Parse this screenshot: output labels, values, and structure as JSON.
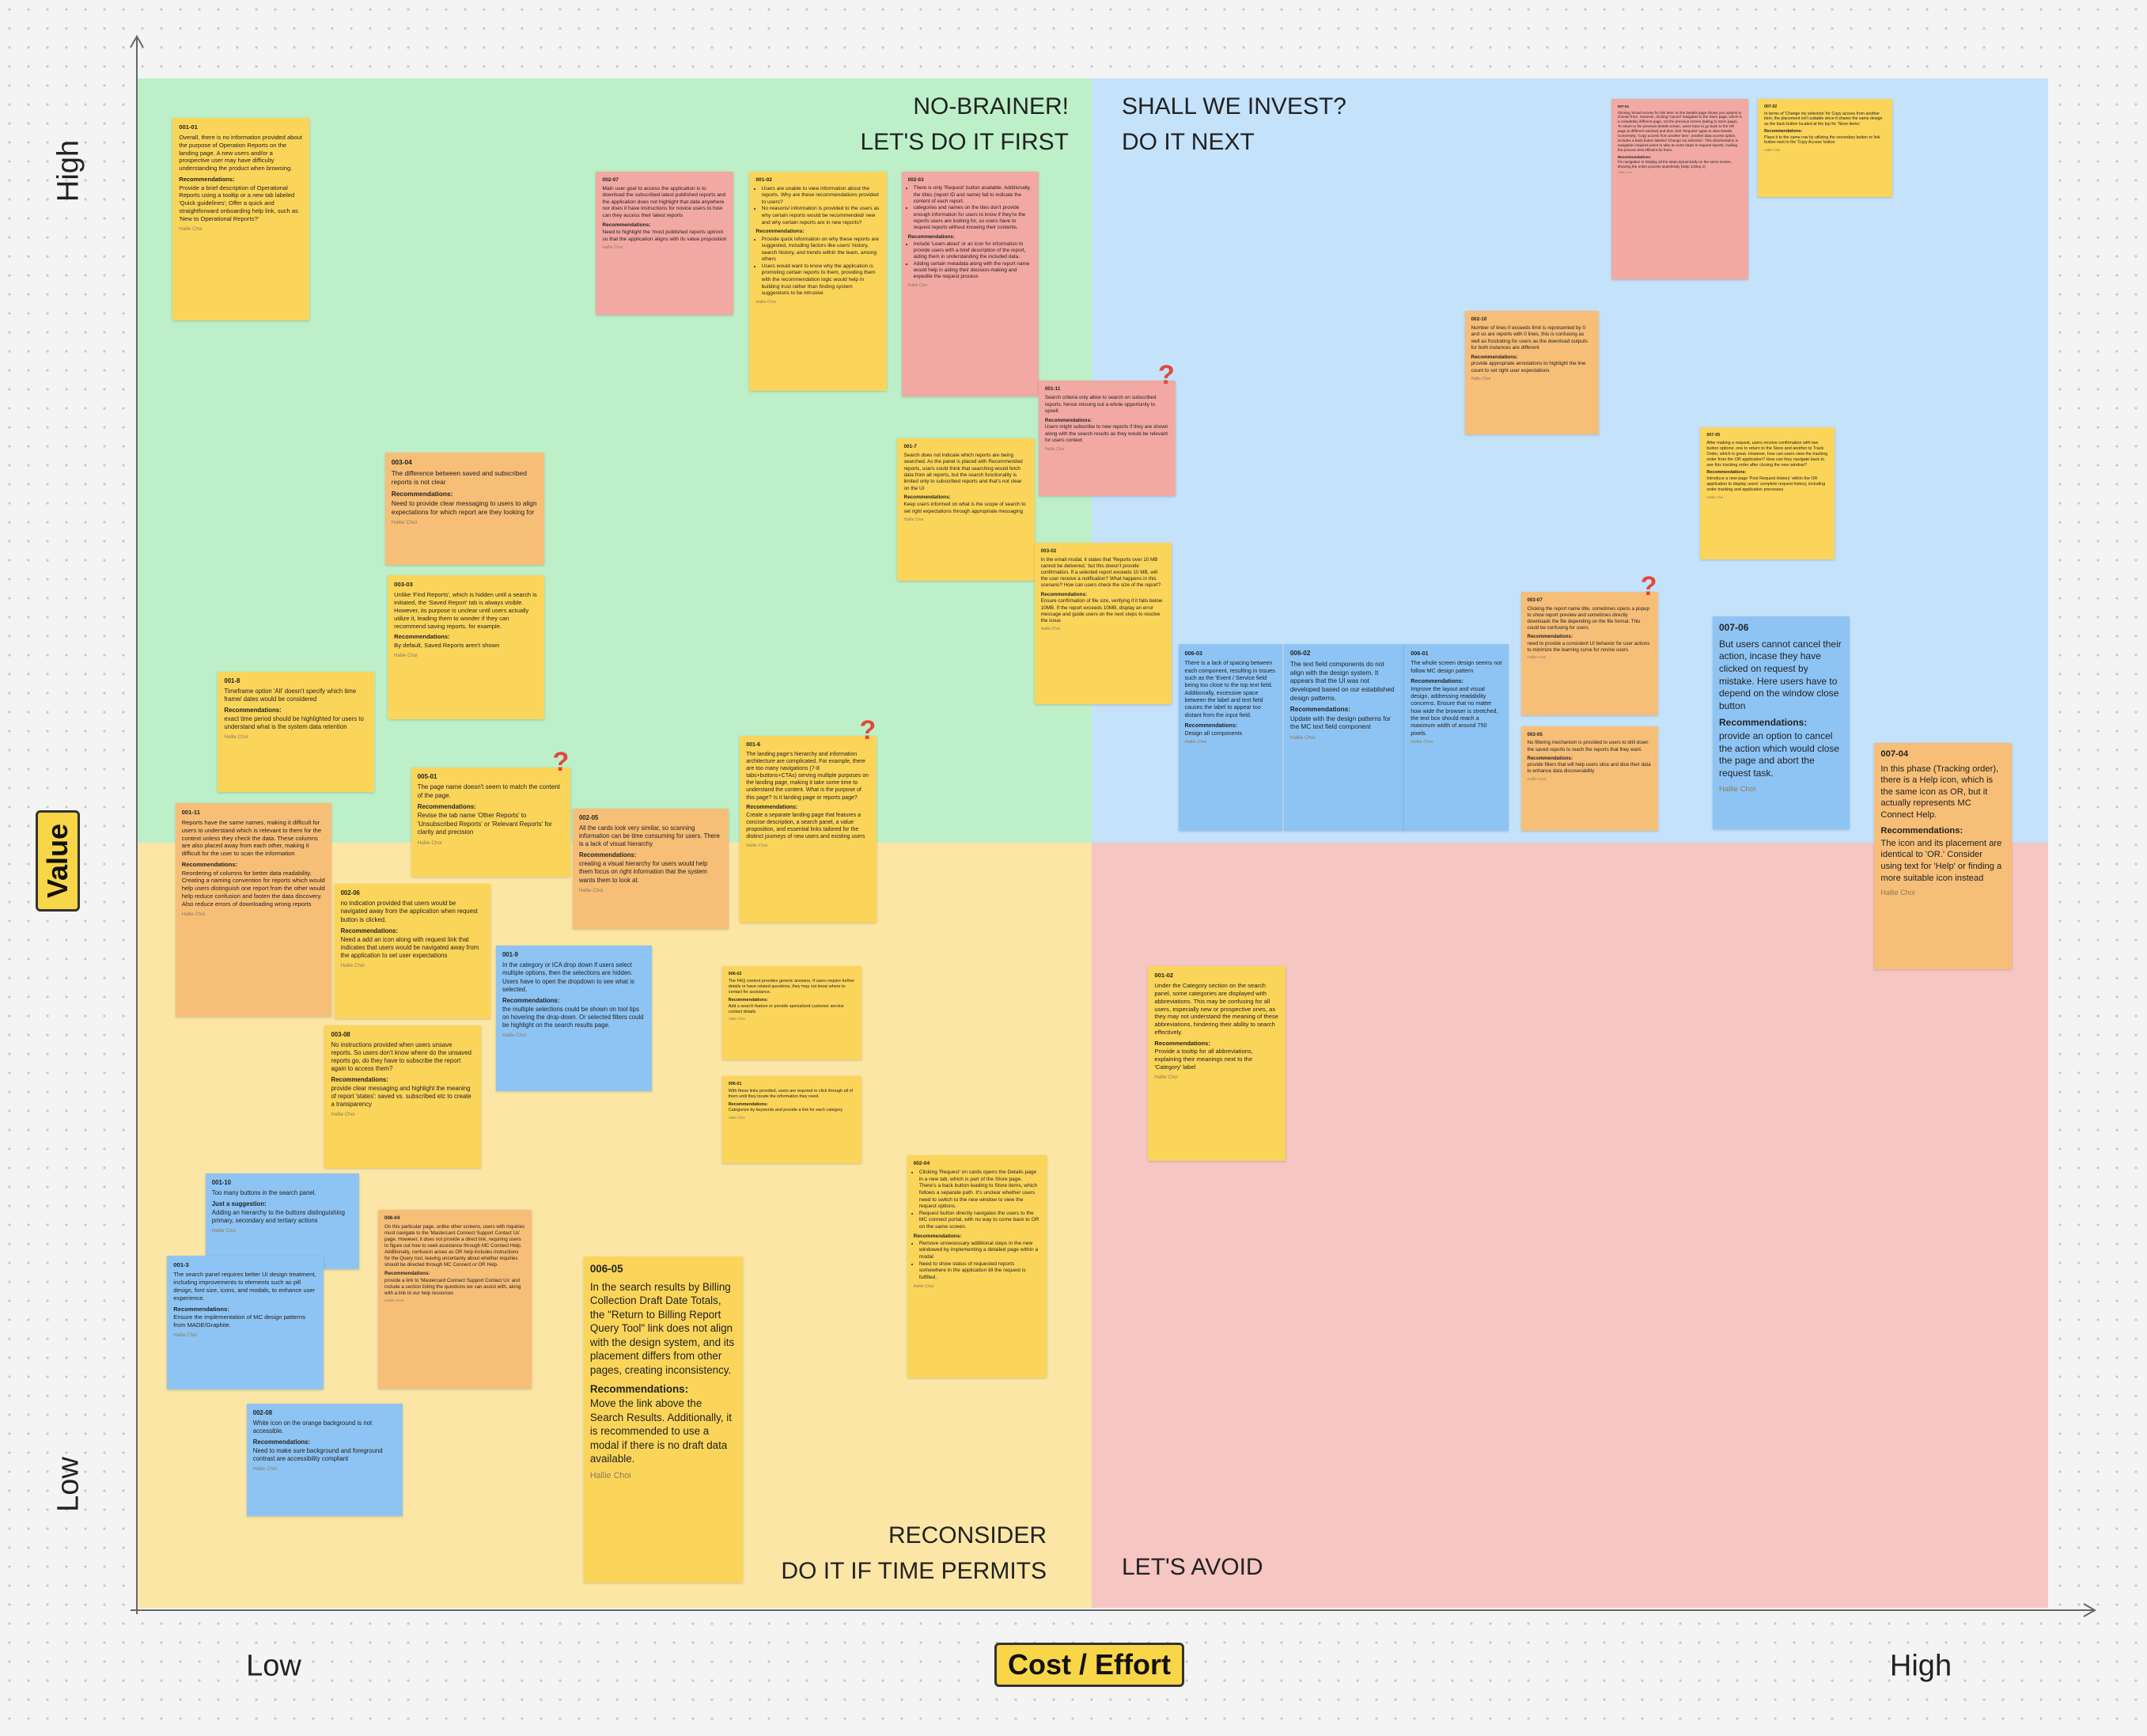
{
  "axes": {
    "y_high": "High",
    "y_label": "Value",
    "y_low": "Low",
    "x_low": "Low",
    "x_label": "Cost / Effort",
    "x_high": "High"
  },
  "quadrants": [
    {
      "lines": [
        "NO-BRAINER!",
        "LET'S DO IT FIRST"
      ]
    },
    {
      "lines": [
        "SHALL WE INVEST?",
        "DO IT NEXT"
      ]
    },
    {
      "lines": [
        "RECONSIDER",
        "DO IT IF TIME PERMITS"
      ]
    },
    {
      "lines": [
        "LET'S AVOID"
      ]
    }
  ],
  "notes": [
    {
      "id": "001-01",
      "body": "Overall, there is no information provided about the purpose of Operation Reports on the landing page. A new users and/or a prospective user may have difficulty understanding the product when browsing.",
      "rec_label": "Recommendations:",
      "rec": "Provide a brief description of Operational Reports using a tooltip or a new tab labeled 'Quick guidelines'; Offer a quick and straightforward onboarding help link, such as 'New to Operational Reports?'",
      "author": "Hallie Choi"
    },
    {
      "id": "002-07",
      "body": "Main user goal to access the application is to download the subscribed latest published reports and the application does not highlight that data anywhere nor does it have instructions for novice users to how can they access their latest reports",
      "rec_label": "Recommendations:",
      "rec": "Need to highlight the 'most published reports uptront so that the application aligns with its value proposition",
      "author": "Hallie Choi"
    },
    {
      "id": "001-02",
      "body_list": [
        "Users are unable to view information about the reports. Why are these recommendations provided to users?",
        "No reasons/ information is provided to the users as why certain reports would be recommended/ new and why certain reports are in new reports?"
      ],
      "rec_label": "Recommendations:",
      "rec_list": [
        "Provide quick information on why these reports are suggested, including factors like users' history, search history, and trends within the team, among others",
        "Users would want to know why the application is promoting certain reports to them, providing them with the recommendation logic would help in building trust rather than finding system suggestions to be intrusive"
      ],
      "author": "Hallie Choi"
    },
    {
      "id": "002-03",
      "body_list": [
        "There is only 'Request' button available. Additionally, the titles (report ID and name) fail to indicate the content of each report.",
        "categories and names on the tiles don't provide enough information for users to know if they're the reports users are looking for, so users have to request reports without knowing their contents."
      ],
      "rec_label": "Recommendations:",
      "rec_list": [
        "Include 'Learn about' or an icon for information to provide users with a brief description of the report, aiding them in understanding the included data.",
        "Adding certain metadata along with the report name would help in aiding their decision-making and expedite the request process"
      ],
      "author": "Hallie Choi"
    },
    {
      "id": "007-01",
      "body": "Clicking 'Email Access for this item' on the Details page shows you options to choose from. However, clicking 'Cancel' navigates to the Store page, which is a completely different page, not the previous screen (taking to Store page). To return to the previous details screen, users have to go back to the OR page (a different window) and then click 'Request' again to view Details. Conversely, 'Copy access from another item', another data access option, includes a back button labeled 'Change my selection'. This disorientation in navigation requires users to take an extra steps to request reports, making the process less efficient for them.",
      "rec_label": "Recommendations:",
      "rec": "Fix navigation or Display all the steps dynamically on the same screen, showing the entire process seamlessly (Step 1/Step 2)",
      "author": "Hallie Choi"
    },
    {
      "id": "007-02",
      "body": "In terms of 'Change my selection' for Copy access from another item, the placement isn't suitable since it shares the same design as the back button located at the top for 'Store items.'",
      "rec_label": "Recommendations:",
      "rec": "Place it to the same row by utilizing the secondary button or link button next to the 'Copy Access' button",
      "author": "Hallie Choi"
    },
    {
      "id": "002-10",
      "body": "Number of lines if exceeds limit is represented by 0 and so are reports with 0 lines, this is confusing as well as frustrating for users as the download outputs for both instances are different",
      "rec_label": "Recommendations:",
      "rec": "provide appropriate annotations to highlight the line count to set right user expectations",
      "author": "Hallie Choi"
    },
    {
      "id": "001-11",
      "flag": "?",
      "body": "Search criteria only allow to search on subscribed reports, hence missing out a whole opportunity to upsell.",
      "rec_label": "Recommendations:",
      "rec": "Users might subscribe to new reports if they are shown along with the search results as they would be relevant for users context",
      "author": "Hallie Choi"
    },
    {
      "id": "001-7",
      "body": "Search does not indicate which reports are being searched. As the panel is placed with Recommended reports, users could think that searching would fetch data from all reports, but the search functionality is limited only to subscribed reports and that's not clear on the UI",
      "rec_label": "Recommendations:",
      "rec": "Keep users informed on what is the scope of search to set right expectations through appropriate messaging",
      "author": "Hallie Choi"
    },
    {
      "id": "003-04",
      "body": "The difference between saved and subscribed reports is not clear",
      "rec_label": "Recommendations:",
      "rec": "Need to provide clear messaging to users to align expectations for which report are they looking for",
      "author": "Hallie Choi"
    },
    {
      "id": "003-03",
      "body": "Unlike 'Find Reports', which is hidden until a search is initiated, the 'Saved Report' tab is always visible. However, its purpose is unclear until users actually utilize it, leading them to wonder if they can recommend saving reports, for example.",
      "rec_label": "Recommendations:",
      "rec": "By default, Saved Reports aren't shown",
      "author": "Hallie Choi"
    },
    {
      "id": "007-05",
      "body": "After making a request, users receive confirmation with two button options: one to return to the Store and another to Track Order, which is great. However, how can users view the tracking order from the OR application? How can they navigate back to see this tracking order after closing the new window?",
      "rec_label": "Recommendations:",
      "rec": "Introduce a new page 'Post Request History' within the OR application to display users' complete request history, including order tracking and application processes",
      "author": "Hallie Choi"
    },
    {
      "id": "003-02",
      "body": "In the email modal, it states that 'Reports over 10 MB cannot be delivered,' but this doesn't provide confirmation. If a selected report exceeds 10 MB, will the user receive a notification? What happens in this scenario? How can users check the size of the report?",
      "rec_label": "Recommendations:",
      "rec": "Ensure confirmation of file size, verifying if it falls below 10MB. If the report exceeds 10MB, display an error message and guide users on the next steps to resolve the issue",
      "author": "Hallie Choi"
    },
    {
      "id": "001-8",
      "body": "Timeframe option 'All' doesn't specify which time frame/ dates would be considered",
      "rec_label": "Recommendations:",
      "rec": "exact time period should be highlighted for users to understand what is the system data retention",
      "author": "Hallie Choi"
    },
    {
      "id": "003-07",
      "flag": "?",
      "body": "Clicking the report name title, sometimes opens a popup to show report preview and sometimes directly downloads the file depending on the file format. This could be confusing for users",
      "rec_label": "Recommendations:",
      "rec": "need to provide a consistent UI behavior for user actions to minimize the learning curve for novice users",
      "author": "Hallie Choi"
    },
    {
      "id": "006-03",
      "body": "There is a lack of spacing between each component, resulting in issues such as the 'Event / Service field being too close to the top text field. Additionally, excessive space between the label and text field causes the label to appear too distant from the input field.",
      "rec_label": "Recommendations:",
      "rec": "Design all components",
      "author": "Hallie Choi"
    },
    {
      "id": "006-02",
      "body": "The text field components do not align with the design system. It appears that the UI was not developed based on our established design patterns.",
      "rec_label": "Recommendations:",
      "rec": "Update with the design patterns for the MC text field component",
      "author": "Hallie Choi"
    },
    {
      "id": "006-01",
      "body": "The whole screen design seems not follow MC design pattern",
      "rec_label": "Recommendations:",
      "rec": "Improve the layout and visual design, addressing readability concerns. Ensure that no matter how wide the browser is stretched, the text box should reach a maximum width of around 750 pixels.",
      "author": "Hallie Choi"
    },
    {
      "id": "003-05",
      "body": "No filtering mechanism is provided to users to drill down the saved reports to reach the reports that they want.",
      "rec_label": "Recommendations:",
      "rec": "provide filters that will help users slice and dice their data to enhance data discoverability",
      "author": "Hallie Choi"
    },
    {
      "id": "007-06",
      "body": "But users cannot cancel their action, incase they have clicked on request by mistake. Here users have to depend on the window close button",
      "rec_label": "Recommendations:",
      "rec": "provide an option to cancel the action which would close the page and abort the request task.",
      "author": "Hallie Choi"
    },
    {
      "id": "007-04",
      "body": "In this phase (Tracking order), there is a Help icon, which is the same icon as OR, but it actually represents MC Connect Help.",
      "rec_label": "Recommendations:",
      "rec": "The icon and its placement are identical to 'OR.' Consider using text for 'Help' or finding a more suitable icon instead",
      "author": "Hallie Choi"
    },
    {
      "id": "005-01",
      "flag": "?",
      "body": "The page name doesn't seem to match the content of the page.",
      "rec_label": "Recommendations:",
      "rec": "Revise the tab name 'Other Reports' to 'Unsubscribed Reports' or 'Relevant Reports' for clarity and precision",
      "author": "Hallie Choi"
    },
    {
      "id": "001-6",
      "flag": "?",
      "body": "The landing page's hierarchy and information architecture are complicated. For example, there are too many navigations (7-8 tabs+buttons+CTAs) serving multiple purposes on the landing page, making it take some time to understand the content. What is the purpose of this page? Is it landing page or reports page?",
      "rec_label": "Recommendations:",
      "rec": "Create a separate landing page that features a concise description, a search panel, a value proposition, and essential links tailored for the distinct journeys of new users and existing users",
      "author": "Hallie Choi"
    },
    {
      "id": "002-05",
      "body": "All the cards look very similar, so scanning information can be time consuming for users. There is a lack of visual hierarchy",
      "rec_label": "Recommendations:",
      "rec": "creating a visual hierarchy for users would help them focus on right information that the system wants them to look at.",
      "author": "Hallie Choi"
    },
    {
      "id": "001-11",
      "body": "Reports have the same names, making it difficult for users to understand which is relevant to them for the context unless they check the data. These columns are also placed away from each other, making it difficult for the user to scan the information",
      "rec_label": "Recommendations:",
      "rec": "Reordering of columns for better data readability. Creating a naming convention for reports which would help users distinguish one report from the other would help reduce confusion and fasten the data discovery. Also reduce errors of downloading wrong reports",
      "author": "Hallie Choi"
    },
    {
      "id": "002-06",
      "body": "no indication provided that users would be navigated away from the application when request button is clicked.",
      "rec_label": "Recommendations:",
      "rec": "Need a add an icon along with request link that indicates that users would be navigated away from the application to set user expectations",
      "author": "Hallie Choi"
    },
    {
      "id": "001-9",
      "body": "In the category or ICA drop down if users select multiple options, then the selections are hidden. Users have to open the dropdown to see what is selected.",
      "rec_label": "Recommendations:",
      "rec": "the multiple selections could be shown on tool tips on hovering the drop-down. Or selected filters could be highlight on the search results page.",
      "author": "Hallie Choi"
    },
    {
      "id": "006-02",
      "body": "The FAQ content provides generic answers. If users require further details or have related questions, they may not know where to contact for assistance.",
      "rec_label": "Recommendations:",
      "rec": "Add a search feature or provide specialized customer service contact details",
      "author": "Hallie Choi"
    },
    {
      "id": "006-01",
      "body": "With these links provided, users are required to click through all of them until they locate the information they need.",
      "rec_label": "Recommendations:",
      "rec": "Categorize by keywords and provide a link for each category",
      "author": "Hallie Choi"
    },
    {
      "id": "001-02",
      "body": "Under the Category section on the search panel, some categories are displayed with abbreviations. This may be confusing for all users, especially new or prospective ones, as they may not understand the meaning of these abbreviations, hindering their ability to search effectively.",
      "rec_label": "Recommendations:",
      "rec": "Provide a tooltip for all abbreviations, explaining their meanings next to the 'Category' label",
      "author": "Hallie Choi"
    },
    {
      "id": "003-08",
      "body": "No instructions provided when users unsave reports. So users don't know where do the unsaved reports go, do they have to subscribe the report again to access them?",
      "rec_label": "Recommendations:",
      "rec": "provide clear messaging and highlight the meaning of report 'states': saved vs. subscribed etc to create a transparency",
      "author": "Hallie Choi"
    },
    {
      "id": "001-10",
      "body": "Too many buttons in the search panel.",
      "rec_label": "Just a suggestion:",
      "rec": "Adding an hierarchy to the buttons distinguishing primary, secondary and tertiary actions",
      "author": "Hallie Choi"
    },
    {
      "id": "001-3",
      "body": "The search panel requires better UI design treatment, including improvements to elements such as pill design, font size, icons, and modals, to enhance user experience.",
      "rec_label": "Recommendations:",
      "rec": "Ensure the implementation of MC design patterns from MADE/Graphite.",
      "author": "Hallie Choi"
    },
    {
      "id": "006-04",
      "body": "On this particular page, unlike other screens, users with inquiries must navigate to the 'Mastercard Connect Support Contact Us' page. However, it does not provide a direct link, requiring users to figure out how to seek assistance through MC Connect Help. Additionally, confusion arises as OR help includes instructions for the Query tool, leaving uncertainty about whether inquiries should be directed through MC Connect or OR Help.",
      "rec_label": "Recommendations:",
      "rec": "provide a link to 'Mastercard Connect Support Contact Us' and include a section listing the questions we can assist with, along with a link to our help resources",
      "author": "Hallie Choi"
    },
    {
      "id": "002-04",
      "body_list": [
        "Clicking 'Request' on cards opens the Details page in a new tab, which is part of the Store page. There's a back button leading to Store items, which follows a separate path. It's unclear whether users need to switch to the new window to view the request options.",
        "Request button directly navigates the users to the MC connect portal, with no way to come back to OR on the same screen."
      ],
      "rec_label": "Recommendations:",
      "rec_list": [
        "Remove unnecessary additional steps in the new windowed by implementing a detailed page within a modal",
        "Need to show status of requested reports somewhere in the application till the request is fulfilled."
      ],
      "author": "Hallie Choi"
    },
    {
      "id": "006-05",
      "body": "In the search results by Billing Collection Draft Date Totals, the \"Return to Billing Report Query Tool\" link does not align with the design system, and its placement differs from other pages, creating inconsistency.",
      "rec_label": "Recommendations:",
      "rec": "Move the link above the Search Results. Additionally, it is recommended to use a modal if there is no draft data available.",
      "author": "Hallie Choi"
    },
    {
      "id": "002-08",
      "body": "White icon on the orange background is not accessible.",
      "rec_label": "Recommendations:",
      "rec": "Need to make sure background and foreground contrast are accessibility compliant",
      "author": "Hallie Choi"
    }
  ]
}
